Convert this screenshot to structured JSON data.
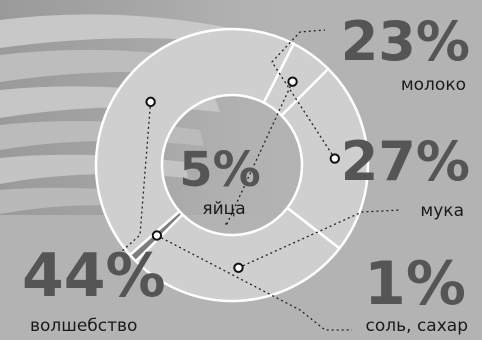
{
  "colors": {
    "background": "#b3b3b3",
    "slice_light": "#cfcfcf",
    "slice_dark": "#7d7d7d",
    "big_number": "#555555",
    "label": "#1a1a1a"
  },
  "chart_data": {
    "type": "pie",
    "style": "donut",
    "slices": [
      {
        "label": "молоко",
        "value": 23,
        "display": "23%"
      },
      {
        "label": "мука",
        "value": 27,
        "display": "27%"
      },
      {
        "label": "соль, сахар",
        "value": 1,
        "display": "1%"
      },
      {
        "label": "волшебство",
        "value": 44,
        "display": "44%"
      },
      {
        "label": "яйца",
        "value": 5,
        "display": "5%"
      }
    ]
  }
}
